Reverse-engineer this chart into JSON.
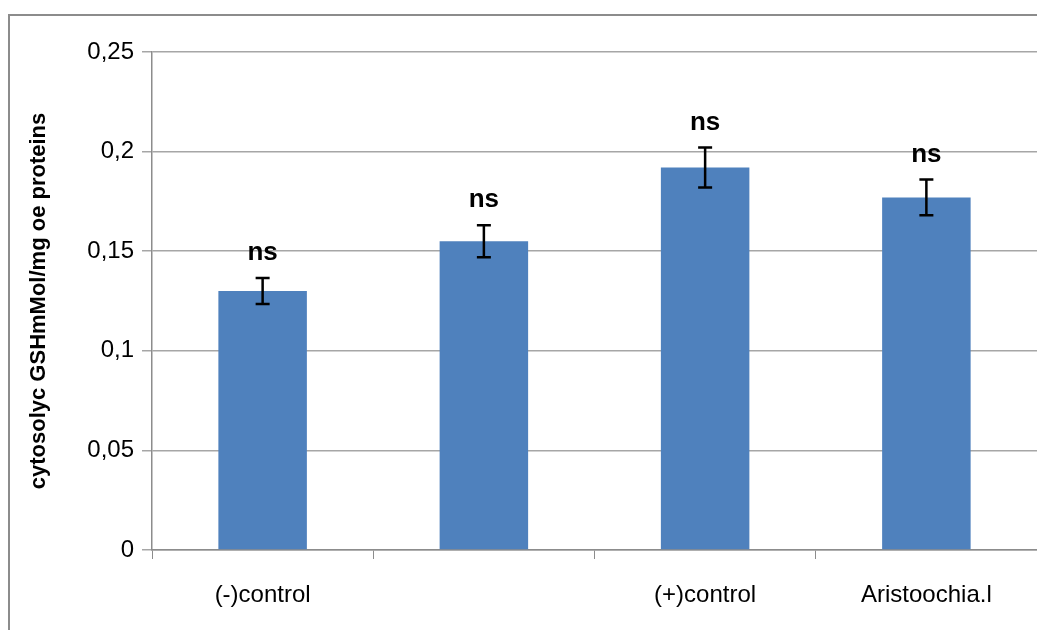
{
  "chart_data": {
    "type": "bar",
    "ylabel": "cytosolyc GSHmMol/mg oe proteins",
    "categories": [
      "(-)control",
      null,
      "(+)control",
      "Aristoochia.l"
    ],
    "values": [
      0.13,
      0.155,
      0.192,
      0.177
    ],
    "errors": [
      0.0065,
      0.008,
      0.01,
      0.009
    ],
    "value_labels": [
      "ns",
      "ns",
      "ns",
      "ns"
    ],
    "color": "#4f81bd",
    "ylim": [
      0,
      0.25
    ],
    "yticks": [
      0,
      {
        "value": 0.05,
        "label": "0,05"
      },
      {
        "value": 0.1,
        "label": "0,1"
      },
      {
        "value": 0.15,
        "label": "0,15"
      },
      {
        "value": 0.2,
        "label": "0,2"
      },
      {
        "value": 0.25,
        "label": "0,25"
      }
    ],
    "grid": "y"
  }
}
